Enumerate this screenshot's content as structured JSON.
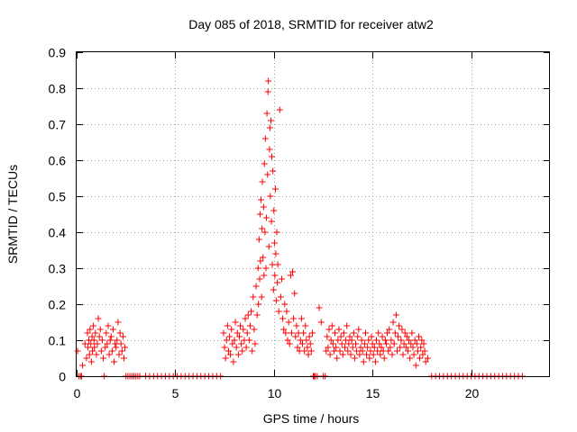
{
  "chart_data": {
    "type": "scatter",
    "title": "Day 085 of 2018, SRMTID for receiver atw2",
    "xlabel": "GPS time / hours",
    "ylabel": "SRMTID / TECUs",
    "xlim": [
      0,
      24
    ],
    "ylim": [
      0,
      0.9
    ],
    "xticks": [
      0,
      5,
      10,
      15,
      20
    ],
    "yticks": [
      0,
      0.1,
      0.2,
      0.3,
      0.4,
      0.5,
      0.6,
      0.7,
      0.8,
      0.9
    ],
    "grid": true,
    "marker": "+",
    "color": "#ff0000",
    "series": [
      {
        "name": "SRMTID",
        "x": [
          0.05,
          0.12,
          0.2,
          0.25,
          0.3,
          0.42,
          0.5,
          0.55,
          0.58,
          0.62,
          0.65,
          0.68,
          0.72,
          0.75,
          0.78,
          0.8,
          0.85,
          0.88,
          0.9,
          0.95,
          1.0,
          1.05,
          1.1,
          1.15,
          1.2,
          1.25,
          1.3,
          1.35,
          1.4,
          1.45,
          1.5,
          1.55,
          1.6,
          1.65,
          1.7,
          1.75,
          1.8,
          1.85,
          1.9,
          1.95,
          2.0,
          2.05,
          2.1,
          2.15,
          2.2,
          2.25,
          2.3,
          2.35,
          2.4,
          2.45,
          2.5,
          2.6,
          2.7,
          2.8,
          2.9,
          3.0,
          3.1,
          3.2,
          3.5,
          3.7,
          3.9,
          4.1,
          4.3,
          4.5,
          4.7,
          4.9,
          5.1,
          5.3,
          5.5,
          5.7,
          5.9,
          6.1,
          6.3,
          6.5,
          6.7,
          6.9,
          7.1,
          7.3,
          7.45,
          7.5,
          7.55,
          7.6,
          7.65,
          7.7,
          7.75,
          7.8,
          7.85,
          7.9,
          7.95,
          8.0,
          8.05,
          8.1,
          8.15,
          8.2,
          8.25,
          8.3,
          8.35,
          8.4,
          8.45,
          8.5,
          8.55,
          8.6,
          8.65,
          8.7,
          8.75,
          8.8,
          8.85,
          8.9,
          8.95,
          9.0,
          9.05,
          9.1,
          9.15,
          9.2,
          9.22,
          9.25,
          9.28,
          9.3,
          9.32,
          9.35,
          9.38,
          9.4,
          9.42,
          9.45,
          9.48,
          9.5,
          9.52,
          9.55,
          9.57,
          9.6,
          9.62,
          9.65,
          9.68,
          9.7,
          9.72,
          9.75,
          9.78,
          9.8,
          9.82,
          9.85,
          9.88,
          9.9,
          9.92,
          9.95,
          9.98,
          10.0,
          10.03,
          10.05,
          10.08,
          10.1,
          10.12,
          10.15,
          10.18,
          10.2,
          10.25,
          10.3,
          10.35,
          10.4,
          10.45,
          10.5,
          10.55,
          10.6,
          10.65,
          10.7,
          10.75,
          10.8,
          10.85,
          10.9,
          10.95,
          11.0,
          11.05,
          11.1,
          11.15,
          11.2,
          11.25,
          11.3,
          11.35,
          11.4,
          11.45,
          11.5,
          11.55,
          11.6,
          11.65,
          11.7,
          11.75,
          11.8,
          11.85,
          11.9,
          11.95,
          12.0,
          12.05,
          12.1,
          12.2,
          12.3,
          12.4,
          12.5,
          12.6,
          12.65,
          12.7,
          12.75,
          12.8,
          12.85,
          12.9,
          12.95,
          13.0,
          13.05,
          13.1,
          13.15,
          13.2,
          13.25,
          13.3,
          13.35,
          13.4,
          13.45,
          13.5,
          13.55,
          13.6,
          13.65,
          13.7,
          13.75,
          13.8,
          13.85,
          13.9,
          13.95,
          14.0,
          14.05,
          14.1,
          14.15,
          14.2,
          14.25,
          14.3,
          14.35,
          14.4,
          14.45,
          14.5,
          14.55,
          14.6,
          14.65,
          14.7,
          14.75,
          14.8,
          14.85,
          14.9,
          14.95,
          15.0,
          15.05,
          15.1,
          15.15,
          15.2,
          15.25,
          15.3,
          15.35,
          15.4,
          15.45,
          15.5,
          15.55,
          15.6,
          15.65,
          15.7,
          15.75,
          15.8,
          15.85,
          15.9,
          15.95,
          16.0,
          16.05,
          16.1,
          16.15,
          16.2,
          16.25,
          16.3,
          16.35,
          16.4,
          16.45,
          16.5,
          16.55,
          16.6,
          16.65,
          16.7,
          16.75,
          16.8,
          16.85,
          16.9,
          16.95,
          17.0,
          17.05,
          17.1,
          17.15,
          17.2,
          17.25,
          17.3,
          17.35,
          17.4,
          17.45,
          17.5,
          17.55,
          17.6,
          17.65,
          17.7,
          17.8,
          18.0,
          18.2,
          18.4,
          18.6,
          18.8,
          19.0,
          19.2,
          19.4,
          19.6,
          19.8,
          20.0,
          20.2,
          20.4,
          20.6,
          20.8,
          21.0,
          21.2,
          21.4,
          21.6,
          21.8,
          22.0,
          22.2,
          22.4,
          22.6
        ],
        "y": [
          0.07,
          0.0,
          0.0,
          0.0,
          0.03,
          0.09,
          0.05,
          0.12,
          0.08,
          0.1,
          0.06,
          0.13,
          0.09,
          0.04,
          0.11,
          0.07,
          0.14,
          0.1,
          0.08,
          0.12,
          0.06,
          0.09,
          0.16,
          0.11,
          0.13,
          0.07,
          0.1,
          0.05,
          0.0,
          0.08,
          0.12,
          0.09,
          0.14,
          0.06,
          0.1,
          0.11,
          0.07,
          0.13,
          0.04,
          0.09,
          0.08,
          0.1,
          0.15,
          0.06,
          0.12,
          0.09,
          0.07,
          0.11,
          0.05,
          0.08,
          0.0,
          0.0,
          0.0,
          0.0,
          0.0,
          0.0,
          0.0,
          0.0,
          0.0,
          0.0,
          0.0,
          0.0,
          0.0,
          0.0,
          0.0,
          0.0,
          0.0,
          0.0,
          0.0,
          0.0,
          0.0,
          0.0,
          0.0,
          0.0,
          0.0,
          0.0,
          0.0,
          0.0,
          0.12,
          0.08,
          0.05,
          0.1,
          0.14,
          0.07,
          0.11,
          0.06,
          0.13,
          0.09,
          0.04,
          0.1,
          0.15,
          0.08,
          0.12,
          0.06,
          0.11,
          0.14,
          0.09,
          0.07,
          0.13,
          0.1,
          0.16,
          0.08,
          0.12,
          0.17,
          0.1,
          0.14,
          0.18,
          0.07,
          0.22,
          0.13,
          0.09,
          0.25,
          0.17,
          0.3,
          0.2,
          0.38,
          0.27,
          0.45,
          0.32,
          0.49,
          0.22,
          0.41,
          0.54,
          0.33,
          0.47,
          0.28,
          0.59,
          0.4,
          0.66,
          0.3,
          0.44,
          0.73,
          0.56,
          0.79,
          0.82,
          0.36,
          0.63,
          0.69,
          0.5,
          0.71,
          0.43,
          0.61,
          0.31,
          0.57,
          0.24,
          0.46,
          0.37,
          0.28,
          0.52,
          0.34,
          0.21,
          0.4,
          0.26,
          0.31,
          0.18,
          0.74,
          0.22,
          0.27,
          0.16,
          0.13,
          0.2,
          0.12,
          0.18,
          0.1,
          0.15,
          0.09,
          0.28,
          0.12,
          0.29,
          0.16,
          0.23,
          0.11,
          0.14,
          0.08,
          0.12,
          0.07,
          0.1,
          0.16,
          0.09,
          0.12,
          0.07,
          0.14,
          0.1,
          0.08,
          0.06,
          0.11,
          0.09,
          0.07,
          0.12,
          0.0,
          0.0,
          0.0,
          0.0,
          0.19,
          0.15,
          0.0,
          0.0,
          0.07,
          0.11,
          0.08,
          0.13,
          0.06,
          0.1,
          0.14,
          0.09,
          0.07,
          0.12,
          0.08,
          0.05,
          0.1,
          0.13,
          0.07,
          0.11,
          0.09,
          0.06,
          0.12,
          0.08,
          0.1,
          0.14,
          0.07,
          0.09,
          0.11,
          0.06,
          0.1,
          0.08,
          0.12,
          0.05,
          0.09,
          0.07,
          0.11,
          0.13,
          0.06,
          0.08,
          0.1,
          0.07,
          0.04,
          0.09,
          0.12,
          0.06,
          0.08,
          0.1,
          0.05,
          0.07,
          0.11,
          0.09,
          0.06,
          0.08,
          0.04,
          0.1,
          0.07,
          0.12,
          0.09,
          0.06,
          0.08,
          0.11,
          0.07,
          0.05,
          0.1,
          0.09,
          0.12,
          0.07,
          0.13,
          0.08,
          0.1,
          0.06,
          0.15,
          0.09,
          0.12,
          0.17,
          0.07,
          0.11,
          0.14,
          0.08,
          0.1,
          0.13,
          0.06,
          0.09,
          0.12,
          0.08,
          0.11,
          0.07,
          0.1,
          0.05,
          0.09,
          0.12,
          0.08,
          0.06,
          0.1,
          0.03,
          0.09,
          0.07,
          0.11,
          0.05,
          0.08,
          0.1,
          0.06,
          0.09,
          0.07,
          0.04,
          0.05,
          0.0,
          0.0,
          0.0,
          0.0,
          0.0,
          0.0,
          0.0,
          0.0,
          0.0,
          0.0,
          0.0,
          0.0,
          0.0,
          0.0,
          0.0,
          0.0,
          0.0,
          0.0,
          0.0,
          0.0,
          0.0,
          0.0,
          0.0,
          0.0
        ]
      }
    ]
  }
}
